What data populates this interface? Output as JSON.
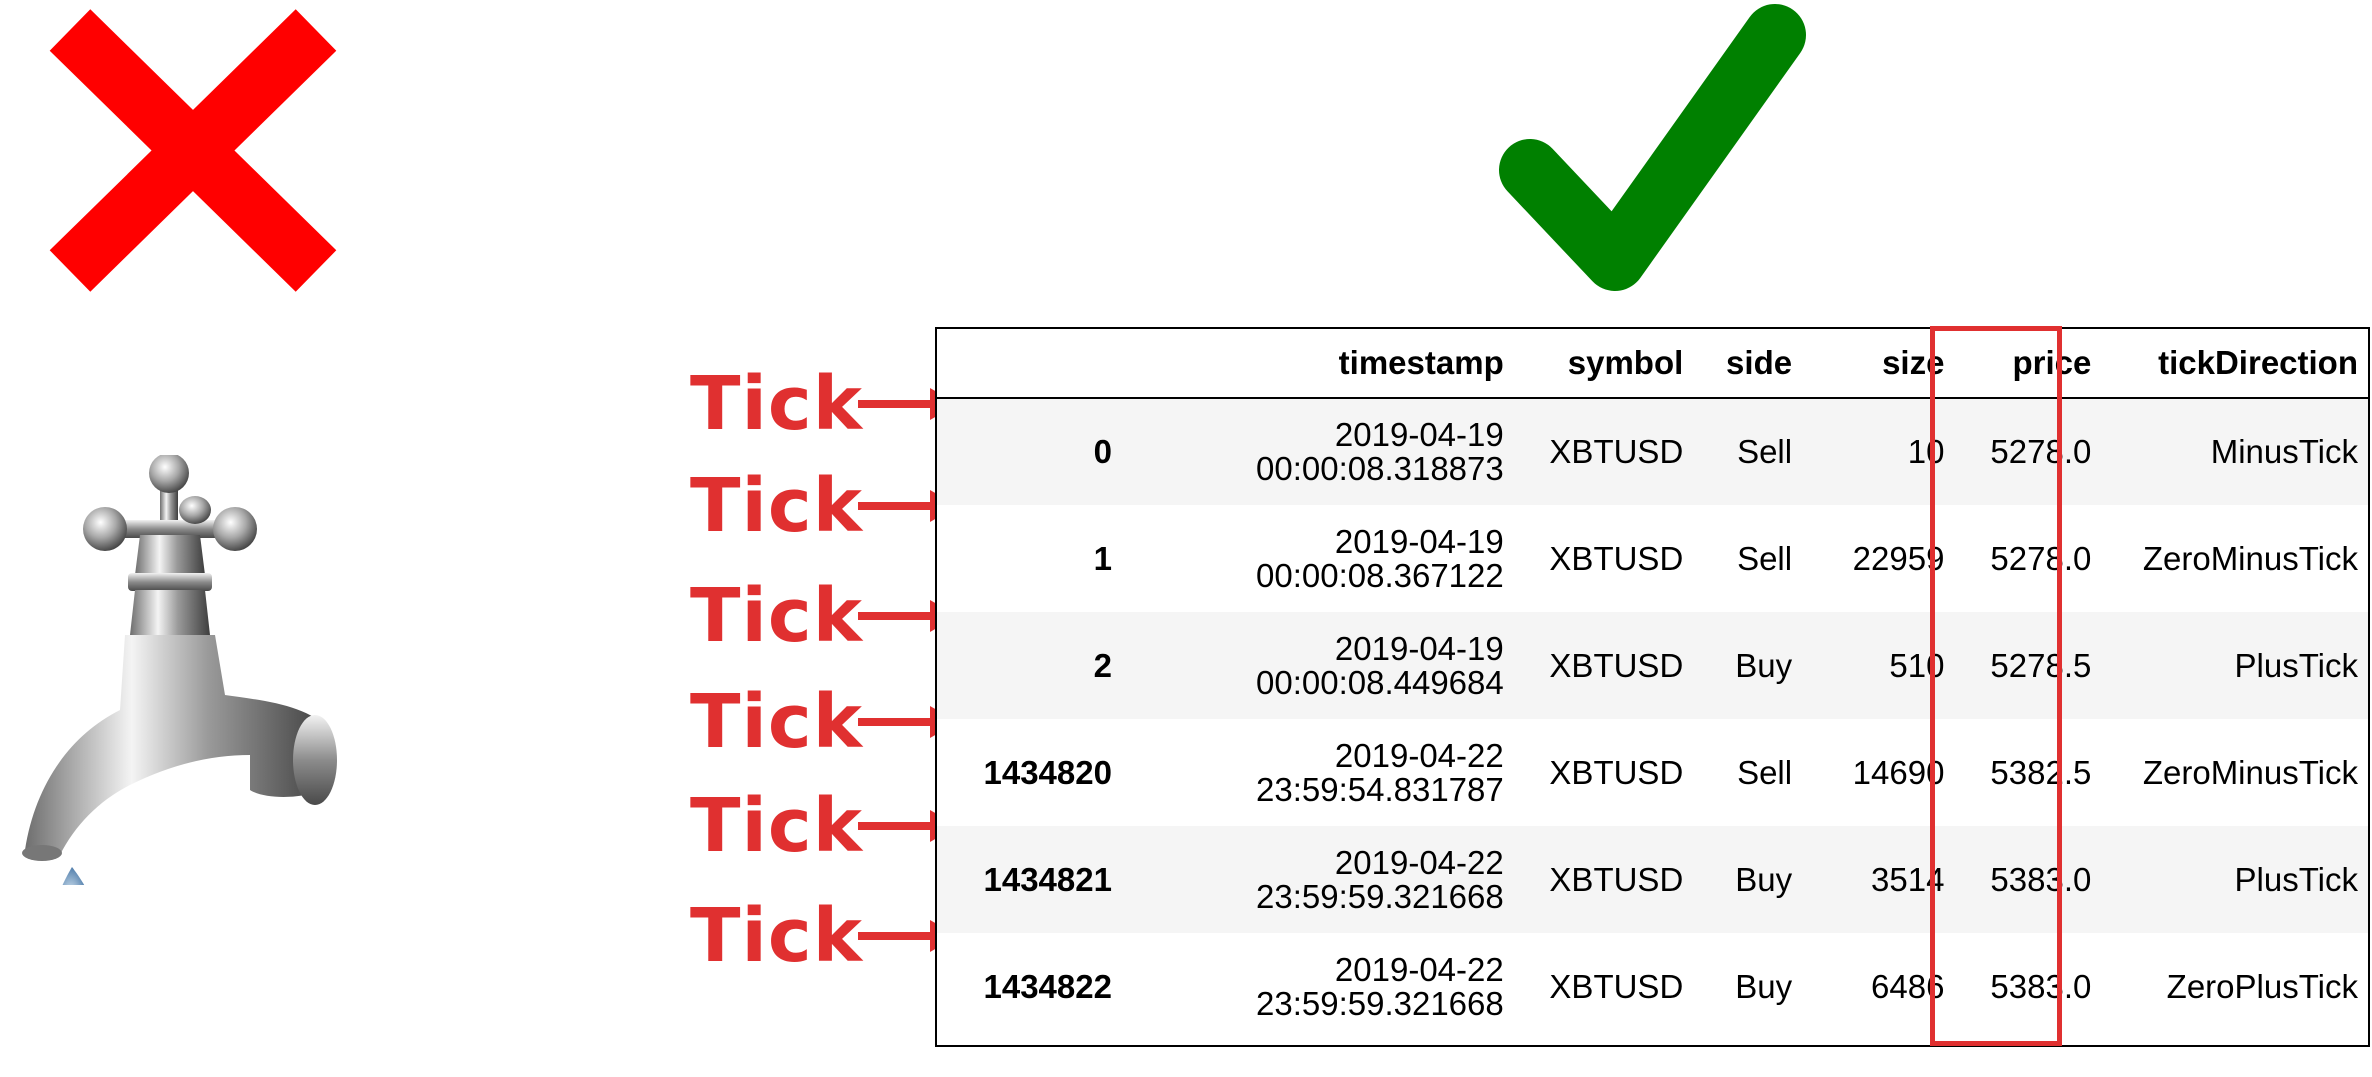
{
  "tick_label": "Tick",
  "table": {
    "columns": [
      "",
      "timestamp",
      "symbol",
      "side",
      "size",
      "price",
      "tickDirection"
    ],
    "rows": [
      {
        "index": "0",
        "date": "2019-04-19",
        "time": "00:00:08.318873",
        "symbol": "XBTUSD",
        "side": "Sell",
        "size": "10",
        "price": "5278.0",
        "tickDirection": "MinusTick"
      },
      {
        "index": "1",
        "date": "2019-04-19",
        "time": "00:00:08.367122",
        "symbol": "XBTUSD",
        "side": "Sell",
        "size": "22959",
        "price": "5278.0",
        "tickDirection": "ZeroMinusTick"
      },
      {
        "index": "2",
        "date": "2019-04-19",
        "time": "00:00:08.449684",
        "symbol": "XBTUSD",
        "side": "Buy",
        "size": "510",
        "price": "5278.5",
        "tickDirection": "PlusTick"
      },
      {
        "index": "1434820",
        "date": "2019-04-22",
        "time": "23:59:54.831787",
        "symbol": "XBTUSD",
        "side": "Sell",
        "size": "14690",
        "price": "5382.5",
        "tickDirection": "ZeroMinusTick"
      },
      {
        "index": "1434821",
        "date": "2019-04-22",
        "time": "23:59:59.321668",
        "symbol": "XBTUSD",
        "side": "Buy",
        "size": "3514",
        "price": "5383.0",
        "tickDirection": "PlusTick"
      },
      {
        "index": "1434822",
        "date": "2019-04-22",
        "time": "23:59:59.321668",
        "symbol": "XBTUSD",
        "side": "Buy",
        "size": "6486",
        "price": "5383.0",
        "tickDirection": "ZeroPlusTick"
      }
    ]
  },
  "colors": {
    "cross": "#ff0000",
    "check": "#008000",
    "tick_red": "#e03030",
    "row_stripe": "#f5f5f5"
  },
  "icons": [
    "cross-icon",
    "check-icon",
    "faucet-icon",
    "arrow-right-icon"
  ]
}
